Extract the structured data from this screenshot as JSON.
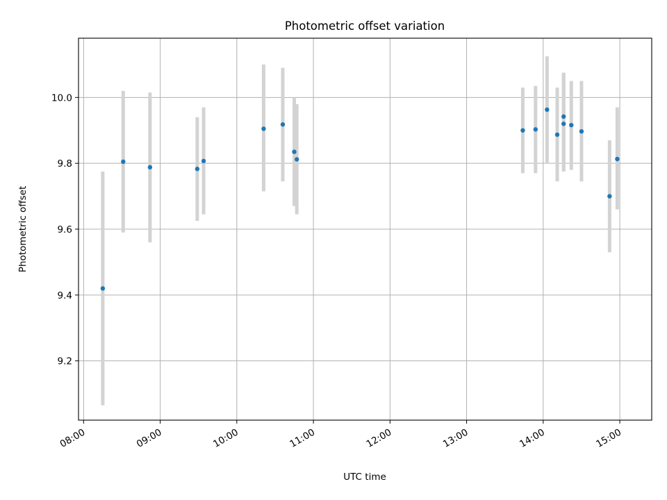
{
  "chart_data": {
    "type": "scatter",
    "title": "Photometric offset variation",
    "xlabel": "UTC time",
    "ylabel": "Photometric offset",
    "x_is_time": true,
    "xlim": [
      "07:56",
      "15:25"
    ],
    "ylim": [
      9.02,
      10.18
    ],
    "x_ticks": [
      "08:00",
      "09:00",
      "10:00",
      "11:00",
      "12:00",
      "13:00",
      "14:00",
      "15:00"
    ],
    "y_ticks": [
      9.2,
      9.4,
      9.6,
      9.8,
      10.0
    ],
    "y_tick_labels": [
      "9.2",
      "9.4",
      "9.6",
      "9.8",
      "10.0"
    ],
    "grid": true,
    "point_color": "#1f77b4",
    "errorbar_color": "#d3d3d3",
    "points": [
      {
        "x": "08:15",
        "y": 9.42,
        "ylow": 9.065,
        "yhigh": 9.775
      },
      {
        "x": "08:31",
        "y": 9.805,
        "ylow": 9.59,
        "yhigh": 10.02
      },
      {
        "x": "08:52",
        "y": 9.788,
        "ylow": 9.56,
        "yhigh": 10.015
      },
      {
        "x": "09:29",
        "y": 9.783,
        "ylow": 9.625,
        "yhigh": 9.94
      },
      {
        "x": "09:34",
        "y": 9.807,
        "ylow": 9.645,
        "yhigh": 9.97
      },
      {
        "x": "10:21",
        "y": 9.905,
        "ylow": 9.715,
        "yhigh": 10.1
      },
      {
        "x": "10:36",
        "y": 9.918,
        "ylow": 9.745,
        "yhigh": 10.09
      },
      {
        "x": "10:45",
        "y": 9.835,
        "ylow": 9.67,
        "yhigh": 10.0
      },
      {
        "x": "10:47",
        "y": 9.812,
        "ylow": 9.645,
        "yhigh": 9.98
      },
      {
        "x": "13:44",
        "y": 9.9,
        "ylow": 9.77,
        "yhigh": 10.03
      },
      {
        "x": "13:54",
        "y": 9.903,
        "ylow": 9.77,
        "yhigh": 10.035
      },
      {
        "x": "14:03",
        "y": 9.963,
        "ylow": 9.8,
        "yhigh": 10.125
      },
      {
        "x": "14:11",
        "y": 9.887,
        "ylow": 9.745,
        "yhigh": 10.03
      },
      {
        "x": "14:16",
        "y": 9.92,
        "ylow": 9.775,
        "yhigh": 10.075
      },
      {
        "x": "14:16",
        "y": 9.942,
        "ylow": 9.775,
        "yhigh": 10.075
      },
      {
        "x": "14:22",
        "y": 9.916,
        "ylow": 9.78,
        "yhigh": 10.05
      },
      {
        "x": "14:30",
        "y": 9.897,
        "ylow": 9.745,
        "yhigh": 10.05
      },
      {
        "x": "14:52",
        "y": 9.7,
        "ylow": 9.53,
        "yhigh": 9.87
      },
      {
        "x": "14:58",
        "y": 9.813,
        "ylow": 9.66,
        "yhigh": 9.97
      }
    ]
  }
}
